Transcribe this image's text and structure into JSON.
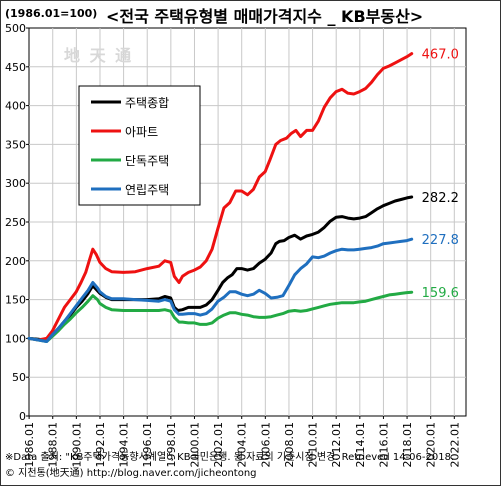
{
  "header": {
    "unit_label": "(1986.01=100)",
    "title": "<전국 주택유형별 매매가격지수 _ KB부동산>"
  },
  "watermark": "地 天 通",
  "footer": {
    "note_source": "※Data 출처: \"KB주택가격동향시계열\", KB국민은행. 원 자료의 기준시점 변경. Retrieved 14-06-2018.",
    "note_copyright": "© 지천통(地天通) http://blog.naver.com/jicheontong"
  },
  "chart_data": {
    "type": "line",
    "title": "<전국 주택유형별 매매가격지수 _ KB부동산>",
    "xlabel": "",
    "ylabel": "(1986.01=100)",
    "xlim": [
      1986.0,
      2023.0
    ],
    "ylim": [
      0,
      500
    ],
    "y_ticks": [
      0,
      50,
      100,
      150,
      200,
      250,
      300,
      350,
      400,
      450,
      500
    ],
    "x_ticks": [
      "1986.01",
      "1988.01",
      "1990.01",
      "1992.01",
      "1994.01",
      "1996.01",
      "1998.01",
      "2000.01",
      "2002.01",
      "2004.01",
      "2006.01",
      "2008.01",
      "2010.01",
      "2012.01",
      "2014.01",
      "2016.01",
      "2018.01",
      "2020.01",
      "2022.01"
    ],
    "grid": true,
    "legend_placement": "upper-left",
    "series": [
      {
        "name": "주택종합",
        "color": "#000000",
        "end_label": "282.2",
        "points": [
          [
            1986.0,
            100
          ],
          [
            1986.8,
            99
          ],
          [
            1987.5,
            97
          ],
          [
            1988.0,
            105
          ],
          [
            1988.5,
            113
          ],
          [
            1989.0,
            122
          ],
          [
            1989.5,
            130
          ],
          [
            1990.0,
            140
          ],
          [
            1990.5,
            148
          ],
          [
            1991.0,
            158
          ],
          [
            1991.4,
            168
          ],
          [
            1991.7,
            163
          ],
          [
            1992.0,
            158
          ],
          [
            1992.5,
            153
          ],
          [
            1993.0,
            150
          ],
          [
            1994.0,
            150
          ],
          [
            1995.0,
            150
          ],
          [
            1996.0,
            150
          ],
          [
            1997.0,
            151
          ],
          [
            1997.5,
            154
          ],
          [
            1998.0,
            152
          ],
          [
            1998.3,
            140
          ],
          [
            1998.6,
            136
          ],
          [
            1999.0,
            137
          ],
          [
            1999.5,
            140
          ],
          [
            2000.0,
            140
          ],
          [
            2000.5,
            140
          ],
          [
            2001.0,
            143
          ],
          [
            2001.5,
            150
          ],
          [
            2002.0,
            162
          ],
          [
            2002.4,
            172
          ],
          [
            2002.8,
            178
          ],
          [
            2003.2,
            182
          ],
          [
            2003.6,
            190
          ],
          [
            2004.0,
            190
          ],
          [
            2004.5,
            188
          ],
          [
            2005.0,
            190
          ],
          [
            2005.5,
            197
          ],
          [
            2006.0,
            202
          ],
          [
            2006.5,
            210
          ],
          [
            2006.9,
            222
          ],
          [
            2007.2,
            225
          ],
          [
            2007.6,
            226
          ],
          [
            2008.0,
            230
          ],
          [
            2008.5,
            233
          ],
          [
            2009.0,
            228
          ],
          [
            2009.5,
            232
          ],
          [
            2010.0,
            234
          ],
          [
            2010.5,
            237
          ],
          [
            2011.0,
            243
          ],
          [
            2011.5,
            251
          ],
          [
            2012.0,
            256
          ],
          [
            2012.5,
            257
          ],
          [
            2013.0,
            255
          ],
          [
            2013.5,
            254
          ],
          [
            2014.0,
            255
          ],
          [
            2014.5,
            257
          ],
          [
            2015.0,
            262
          ],
          [
            2015.5,
            267
          ],
          [
            2016.0,
            271
          ],
          [
            2016.5,
            274
          ],
          [
            2017.0,
            277
          ],
          [
            2017.5,
            279
          ],
          [
            2018.0,
            281
          ],
          [
            2018.4,
            282.2
          ]
        ]
      },
      {
        "name": "아파트",
        "color": "#ee1111",
        "end_label": "467.0",
        "points": [
          [
            1986.0,
            100
          ],
          [
            1986.8,
            98
          ],
          [
            1987.5,
            100
          ],
          [
            1988.0,
            110
          ],
          [
            1988.5,
            125
          ],
          [
            1989.0,
            140
          ],
          [
            1989.5,
            150
          ],
          [
            1990.0,
            160
          ],
          [
            1990.4,
            172
          ],
          [
            1990.8,
            185
          ],
          [
            1991.1,
            200
          ],
          [
            1991.4,
            215
          ],
          [
            1991.7,
            208
          ],
          [
            1992.0,
            198
          ],
          [
            1992.5,
            190
          ],
          [
            1993.0,
            186
          ],
          [
            1994.0,
            185
          ],
          [
            1995.0,
            186
          ],
          [
            1996.0,
            190
          ],
          [
            1997.0,
            193
          ],
          [
            1997.5,
            200
          ],
          [
            1998.0,
            198
          ],
          [
            1998.3,
            180
          ],
          [
            1998.7,
            172
          ],
          [
            1999.0,
            180
          ],
          [
            1999.5,
            185
          ],
          [
            2000.0,
            188
          ],
          [
            2000.5,
            192
          ],
          [
            2001.0,
            200
          ],
          [
            2001.5,
            215
          ],
          [
            2002.0,
            242
          ],
          [
            2002.5,
            268
          ],
          [
            2003.0,
            275
          ],
          [
            2003.5,
            290
          ],
          [
            2004.0,
            290
          ],
          [
            2004.5,
            285
          ],
          [
            2005.0,
            292
          ],
          [
            2005.5,
            308
          ],
          [
            2006.0,
            315
          ],
          [
            2006.4,
            330
          ],
          [
            2006.9,
            350
          ],
          [
            2007.3,
            355
          ],
          [
            2007.8,
            358
          ],
          [
            2008.2,
            364
          ],
          [
            2008.6,
            368
          ],
          [
            2009.0,
            360
          ],
          [
            2009.5,
            368
          ],
          [
            2010.0,
            368
          ],
          [
            2010.5,
            380
          ],
          [
            2011.0,
            398
          ],
          [
            2011.5,
            410
          ],
          [
            2012.0,
            418
          ],
          [
            2012.5,
            421
          ],
          [
            2013.0,
            416
          ],
          [
            2013.5,
            415
          ],
          [
            2014.0,
            418
          ],
          [
            2014.5,
            422
          ],
          [
            2015.0,
            430
          ],
          [
            2015.5,
            440
          ],
          [
            2016.0,
            448
          ],
          [
            2016.5,
            451
          ],
          [
            2017.0,
            455
          ],
          [
            2017.5,
            459
          ],
          [
            2018.0,
            463
          ],
          [
            2018.4,
            467.0
          ]
        ]
      },
      {
        "name": "단독주택",
        "color": "#22aa44",
        "end_label": "159.6",
        "points": [
          [
            1986.0,
            100
          ],
          [
            1986.8,
            98
          ],
          [
            1987.5,
            96
          ],
          [
            1988.0,
            103
          ],
          [
            1988.5,
            110
          ],
          [
            1989.0,
            118
          ],
          [
            1989.5,
            125
          ],
          [
            1990.0,
            133
          ],
          [
            1990.5,
            140
          ],
          [
            1991.0,
            148
          ],
          [
            1991.4,
            155
          ],
          [
            1991.8,
            150
          ],
          [
            1992.0,
            145
          ],
          [
            1992.5,
            140
          ],
          [
            1993.0,
            137
          ],
          [
            1994.0,
            136
          ],
          [
            1995.0,
            136
          ],
          [
            1996.0,
            136
          ],
          [
            1997.0,
            136
          ],
          [
            1997.5,
            137
          ],
          [
            1998.0,
            135
          ],
          [
            1998.3,
            127
          ],
          [
            1998.7,
            121
          ],
          [
            1999.0,
            121
          ],
          [
            1999.5,
            120
          ],
          [
            2000.0,
            120
          ],
          [
            2000.5,
            118
          ],
          [
            2001.0,
            118
          ],
          [
            2001.5,
            120
          ],
          [
            2002.0,
            126
          ],
          [
            2002.5,
            130
          ],
          [
            2003.0,
            133
          ],
          [
            2003.5,
            133
          ],
          [
            2004.0,
            131
          ],
          [
            2004.5,
            130
          ],
          [
            2005.0,
            128
          ],
          [
            2005.5,
            127
          ],
          [
            2006.0,
            127
          ],
          [
            2006.5,
            128
          ],
          [
            2007.0,
            130
          ],
          [
            2007.5,
            132
          ],
          [
            2008.0,
            135
          ],
          [
            2008.5,
            136
          ],
          [
            2009.0,
            135
          ],
          [
            2009.5,
            136
          ],
          [
            2010.0,
            138
          ],
          [
            2010.5,
            140
          ],
          [
            2011.0,
            142
          ],
          [
            2011.5,
            144
          ],
          [
            2012.0,
            145
          ],
          [
            2012.5,
            146
          ],
          [
            2013.0,
            146
          ],
          [
            2013.5,
            146
          ],
          [
            2014.0,
            147
          ],
          [
            2014.5,
            148
          ],
          [
            2015.0,
            150
          ],
          [
            2015.5,
            152
          ],
          [
            2016.0,
            154
          ],
          [
            2016.5,
            156
          ],
          [
            2017.0,
            157
          ],
          [
            2017.5,
            158
          ],
          [
            2018.0,
            159
          ],
          [
            2018.4,
            159.6
          ]
        ]
      },
      {
        "name": "연립주택",
        "color": "#1f6fbf",
        "end_label": "227.8",
        "points": [
          [
            1986.0,
            100
          ],
          [
            1986.8,
            98
          ],
          [
            1987.5,
            96
          ],
          [
            1988.0,
            105
          ],
          [
            1988.5,
            113
          ],
          [
            1989.0,
            122
          ],
          [
            1989.5,
            132
          ],
          [
            1990.0,
            142
          ],
          [
            1990.5,
            152
          ],
          [
            1991.0,
            162
          ],
          [
            1991.4,
            172
          ],
          [
            1991.8,
            165
          ],
          [
            1992.0,
            160
          ],
          [
            1992.5,
            154
          ],
          [
            1993.0,
            151
          ],
          [
            1994.0,
            151
          ],
          [
            1995.0,
            150
          ],
          [
            1996.0,
            149
          ],
          [
            1997.0,
            148
          ],
          [
            1997.5,
            150
          ],
          [
            1998.0,
            148
          ],
          [
            1998.3,
            137
          ],
          [
            1998.7,
            131
          ],
          [
            1999.0,
            131
          ],
          [
            1999.5,
            132
          ],
          [
            2000.0,
            132
          ],
          [
            2000.5,
            130
          ],
          [
            2001.0,
            132
          ],
          [
            2001.5,
            138
          ],
          [
            2002.0,
            148
          ],
          [
            2002.5,
            153
          ],
          [
            2003.0,
            160
          ],
          [
            2003.5,
            160
          ],
          [
            2004.0,
            157
          ],
          [
            2004.5,
            155
          ],
          [
            2005.0,
            157
          ],
          [
            2005.5,
            162
          ],
          [
            2006.0,
            158
          ],
          [
            2006.5,
            152
          ],
          [
            2007.0,
            153
          ],
          [
            2007.5,
            155
          ],
          [
            2008.0,
            168
          ],
          [
            2008.5,
            182
          ],
          [
            2009.0,
            190
          ],
          [
            2009.5,
            196
          ],
          [
            2010.0,
            205
          ],
          [
            2010.5,
            204
          ],
          [
            2011.0,
            206
          ],
          [
            2011.5,
            210
          ],
          [
            2012.0,
            213
          ],
          [
            2012.5,
            215
          ],
          [
            2013.0,
            214
          ],
          [
            2013.5,
            214
          ],
          [
            2014.0,
            215
          ],
          [
            2014.5,
            216
          ],
          [
            2015.0,
            217
          ],
          [
            2015.5,
            219
          ],
          [
            2016.0,
            222
          ],
          [
            2016.5,
            223
          ],
          [
            2017.0,
            224
          ],
          [
            2017.5,
            225
          ],
          [
            2018.0,
            226
          ],
          [
            2018.4,
            227.8
          ]
        ]
      }
    ]
  }
}
